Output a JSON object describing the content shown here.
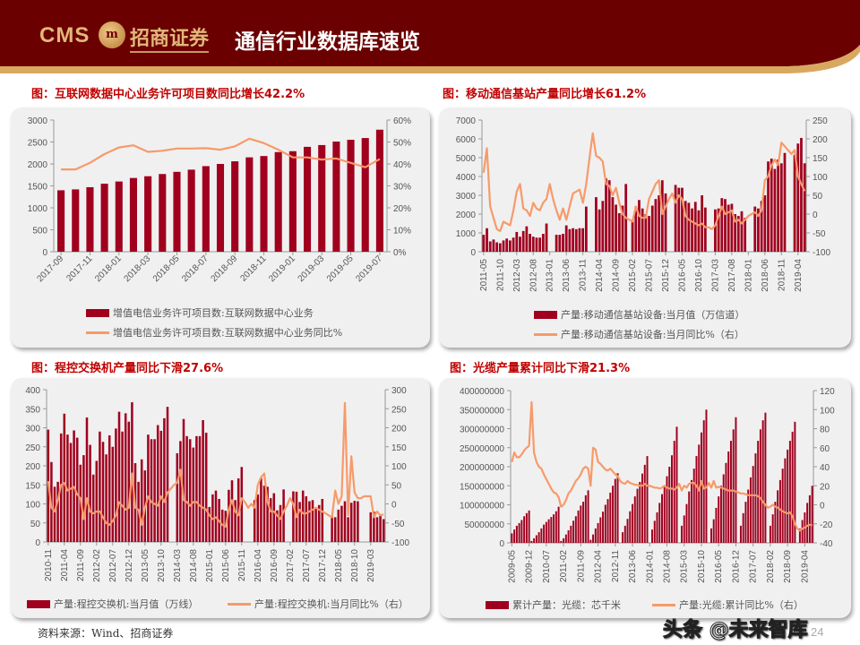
{
  "header": {
    "logo_text": "CMS",
    "logo_emblem": "m",
    "logo_cn": "招商证券",
    "title": "通信行业数据库速览"
  },
  "colors": {
    "header_bg": "#6b0000",
    "header_accent": "#d9a860",
    "bar": "#a0001e",
    "line": "#f79a6a",
    "title_red": "#c00000"
  },
  "figures": [
    {
      "title": "图：互联网数据中心业务许可项目数同比增长42.2%",
      "legend_bar": "增值电信业务许可项目数:互联网数据中心业务",
      "legend_line": "增值电信业务许可项目数:互联网数据中心业务同比%"
    },
    {
      "title": "图：移动通信基站产量同比增长61.2%",
      "legend_bar": "产量:移动通信基站设备:当月值（万信道）",
      "legend_line": "产量:移动通信基站设备:当月同比%（右）"
    },
    {
      "title": "图：程控交换机产量同比下滑27.6%",
      "legend_bar": "产量:程控交换机:当月值（万线）",
      "legend_line": "产量:程控交换机:当月同比%（右）"
    },
    {
      "title": "图：光缆产量累计同比下滑21.3%",
      "legend_bar": "累计产量：光缆：芯千米",
      "legend_line": "产量:光缆:累计同比%（右）"
    }
  ],
  "chart_data": [
    {
      "type": "bar+line",
      "x_range": [
        "2017-09",
        "2019-07"
      ],
      "xticks": [
        "2017-09",
        "2017-11",
        "2018-01",
        "2018-03",
        "2018-05",
        "2018-07",
        "2018-09",
        "2018-11",
        "2019-01",
        "2019-03",
        "2019-05",
        "2019-07"
      ],
      "ylim": [
        0,
        3000
      ],
      "yticks_left": [
        "0",
        "500",
        "1000",
        "1500",
        "2000",
        "2500",
        "3000"
      ],
      "y2lim": [
        0,
        60
      ],
      "yticks_right": [
        "0%",
        "10%",
        "20%",
        "30%",
        "40%",
        "50%",
        "60%"
      ],
      "grid": false,
      "legend": "bottom",
      "series": [
        {
          "name": "增值电信业务许可项目数:互联网数据中心业务",
          "type": "bar",
          "axis": "left",
          "values": [
            1400,
            1420,
            1470,
            1550,
            1600,
            1680,
            1720,
            1770,
            1820,
            1870,
            1950,
            2000,
            2060,
            2150,
            2180,
            2270,
            2290,
            2390,
            2430,
            2510,
            2550,
            2590,
            2780
          ]
        },
        {
          "name": "增值电信业务许可项目数:互联网数据中心业务同比%",
          "type": "line",
          "axis": "right",
          "values": [
            37.5,
            37.5,
            40.5,
            44.5,
            47.5,
            48.5,
            45.5,
            46,
            47,
            47,
            47.2,
            46.5,
            48,
            51.5,
            49.5,
            46.5,
            43,
            43,
            42,
            42.5,
            40.5,
            38.5,
            42.2
          ]
        }
      ]
    },
    {
      "type": "bar+line",
      "x_range": [
        "2011-05",
        "2019-06"
      ],
      "xticks": [
        "2011-05",
        "2011-10",
        "2012-03",
        "2012-08",
        "2013-01",
        "2013-06",
        "2013-11",
        "2014-04",
        "2014-09",
        "2015-02",
        "2015-07",
        "2015-12",
        "2016-05",
        "2016-10",
        "2017-03",
        "2017-08",
        "2018-01",
        "2018-06",
        "2018-11",
        "2019-04"
      ],
      "ylim": [
        0,
        7000
      ],
      "yticks_left": [
        "0",
        "1000",
        "2000",
        "3000",
        "4000",
        "5000",
        "6000",
        "7000"
      ],
      "y2lim": [
        -100,
        250
      ],
      "yticks_right": [
        "-100",
        "-50",
        "0",
        "50",
        "100",
        "150",
        "200",
        "250"
      ],
      "grid": false,
      "legend": "bottom",
      "series": [
        {
          "name": "产量:移动通信基站设备:当月值（万信道）",
          "type": "bar",
          "axis": "left",
          "values": [
            900,
            1250,
            550,
            650,
            500,
            450,
            600,
            700,
            600,
            750,
            1050,
            800,
            1100,
            1350,
            950,
            800,
            750,
            750,
            950,
            1500,
            null,
            null,
            900,
            900,
            950,
            1400,
            1200,
            1250,
            1200,
            1250,
            1250,
            2400,
            null,
            null,
            2900,
            2250,
            2700,
            3900,
            3800,
            2900,
            2500,
            2050,
            2450,
            3600,
            null,
            1700,
            2400,
            2750,
            2300,
            2000,
            1900,
            2450,
            2800,
            3000,
            3800,
            3100,
            null,
            null,
            3550,
            3400,
            3400,
            2700,
            2600,
            2300,
            2650,
            2200,
            3000,
            2350,
            null,
            null,
            2250,
            2300,
            2850,
            2800,
            2500,
            2550,
            2000,
            1900,
            2150,
            1800,
            null,
            null,
            2400,
            2300,
            2700,
            3000,
            4800,
            4950,
            4400,
            4900,
            4700,
            5250,
            null,
            null,
            5150,
            5750,
            6050,
            4700
          ]
        },
        {
          "name": "产量:移动通信基站设备:当月同比%（右）",
          "type": "line",
          "axis": "right",
          "values": [
            110,
            175,
            20,
            -10,
            -40,
            -45,
            -20,
            -25,
            -30,
            10,
            60,
            80,
            15,
            10,
            -5,
            30,
            15,
            10,
            30,
            40,
            80,
            40,
            10,
            -15,
            15,
            -15,
            20,
            55,
            60,
            65,
            30,
            80,
            150,
            215,
            155,
            150,
            140,
            80,
            75,
            50,
            70,
            30,
            0,
            -10,
            -15,
            -20,
            20,
            -5,
            -10,
            -10,
            40,
            60,
            80,
            90,
            0,
            20,
            40,
            55,
            30,
            50,
            40,
            -5,
            -15,
            -20,
            -25,
            -30,
            -25,
            -35,
            -35,
            -40,
            -30,
            -5,
            20,
            0,
            5,
            10,
            -20,
            -15,
            -25,
            -15,
            -5,
            0,
            5,
            -5,
            10,
            90,
            100,
            130,
            145,
            130,
            190,
            180,
            170,
            160,
            170,
            100,
            80,
            61.2
          ]
        }
      ]
    },
    {
      "type": "bar+line",
      "x_range": [
        "2010-11",
        "2019-07"
      ],
      "xticks": [
        "2010-11",
        "2011-04",
        "2011-09",
        "2012-02",
        "2012-07",
        "2012-12",
        "2013-05",
        "2013-10",
        "2014-03",
        "2014-08",
        "2015-01",
        "2015-06",
        "2015-11",
        "2016-04",
        "2016-09",
        "2017-02",
        "2017-07",
        "2017-12",
        "2018-05",
        "2018-10",
        "2019-03"
      ],
      "ylim": [
        0,
        400
      ],
      "yticks_left": [
        "0",
        "50",
        "100",
        "150",
        "200",
        "250",
        "300",
        "350",
        "400"
      ],
      "y2lim": [
        -100,
        300
      ],
      "yticks_right": [
        "-100",
        "-50",
        "0",
        "50",
        "100",
        "150",
        "200",
        "250",
        "300"
      ],
      "grid": false,
      "legend": "bottom",
      "series": [
        {
          "name": "产量:程控交换机:当月值（万线）",
          "type": "bar",
          "axis": "left",
          "values": [
            295,
            210,
            145,
            158,
            285,
            337,
            282,
            260,
            293,
            274,
            203,
            228,
            327,
            255,
            177,
            213,
            290,
            263,
            230,
            280,
            250,
            298,
            342,
            290,
            338,
            316,
            367,
            207,
            158,
            217,
            188,
            282,
            270,
            270,
            307,
            292,
            325,
            355,
            null,
            null,
            233,
            265,
            323,
            278,
            270,
            248,
            278,
            278,
            320,
            287,
            92,
            125,
            135,
            113,
            85,
            82,
            137,
            162,
            110,
            167,
            197,
            null,
            null,
            null,
            110,
            125,
            168,
            148,
            145,
            115,
            128,
            83,
            97,
            138,
            null,
            null,
            133,
            132,
            105,
            135,
            120,
            107,
            110,
            88,
            97,
            113,
            null,
            null,
            68,
            65,
            85,
            95,
            107,
            65,
            103,
            108,
            107,
            null,
            null,
            null,
            78,
            80,
            65,
            70,
            60
          ]
        },
        {
          "name": "产量:程控交换机:当月同比%（右）",
          "type": "line",
          "axis": "right",
          "values": [
            60,
            -10,
            -20,
            10,
            50,
            55,
            35,
            40,
            45,
            25,
            15,
            -40,
            15,
            -20,
            -25,
            -20,
            -20,
            -35,
            -50,
            -55,
            -45,
            -30,
            5,
            -5,
            -15,
            -10,
            80,
            -10,
            -15,
            -55,
            -10,
            20,
            5,
            0,
            -5,
            20,
            5,
            30,
            40,
            50,
            55,
            90,
            10,
            5,
            -5,
            5,
            5,
            -5,
            -10,
            -15,
            -30,
            -40,
            -35,
            -45,
            -55,
            -60,
            -15,
            10,
            -20,
            -30,
            15,
            5,
            -10,
            0,
            -10,
            50,
            70,
            80,
            5,
            -20,
            -20,
            -30,
            -40,
            -20,
            -5,
            15,
            0,
            -35,
            -15,
            -25,
            -25,
            -20,
            -15,
            -10,
            -15,
            -20,
            -25,
            -30,
            -35,
            35,
            0,
            20,
            265,
            -30,
            125,
            30,
            15,
            15,
            20,
            20,
            20,
            -35,
            -20,
            -30,
            -27.6
          ]
        }
      ]
    },
    {
      "type": "bar+line",
      "x_range": [
        "2009-05",
        "2019-07"
      ],
      "xticks": [
        "2009-05",
        "2009-12",
        "2010-07",
        "2011-02",
        "2011-09",
        "2012-04",
        "2012-11",
        "2013-06",
        "2014-01",
        "2014-08",
        "2015-03",
        "2015-10",
        "2016-05",
        "2016-12",
        "2017-07",
        "2018-02",
        "2018-09",
        "2019-04"
      ],
      "ylim": [
        0,
        400000000
      ],
      "yticks_left": [
        "0",
        "50000000",
        "100000000",
        "150000000",
        "200000000",
        "250000000",
        "300000000",
        "350000000",
        "400000000"
      ],
      "y2lim": [
        -40,
        120
      ],
      "yticks_right": [
        "-40",
        "-20",
        "0",
        "20",
        "40",
        "60",
        "80",
        "100",
        "120"
      ],
      "grid": false,
      "legend": "bottom",
      "series": [
        {
          "name": "累计产量：光缆：芯千米",
          "type": "bar",
          "axis": "left",
          "values": [
            25000000.0,
            35000000.0,
            45000000.0,
            52000000.0,
            60000000.0,
            70000000.0,
            78000000.0,
            85000000.0,
            5000000.0,
            12000000.0,
            20000000.0,
            28000000.0,
            38000000.0,
            48000000.0,
            55000000.0,
            62000000.0,
            68000000.0,
            75000000.0,
            83000000.0,
            95000000.0,
            5000000.0,
            12000000.0,
            22000000.0,
            33000000.0,
            45000000.0,
            58000000.0,
            70000000.0,
            85000000.0,
            98000000.0,
            108000000.0,
            125000000.0,
            138000000.0,
            8000000.0,
            22000000.0,
            38000000.0,
            52000000.0,
            67000000.0,
            82000000.0,
            100000000.0,
            115000000.0,
            132000000.0,
            150000000.0,
            168000000.0,
            183000000.0,
            null,
            28000000.0,
            45000000.0,
            63000000.0,
            83000000.0,
            102000000.0,
            122000000.0,
            142000000.0,
            160000000.0,
            182000000.0,
            205000000.0,
            228000000.0,
            null,
            35000000.0,
            58000000.0,
            80000000.0,
            105000000.0,
            128000000.0,
            150000000.0,
            175000000.0,
            200000000.0,
            230000000.0,
            268000000.0,
            305000000.0,
            null,
            45000000.0,
            72000000.0,
            102000000.0,
            135000000.0,
            165000000.0,
            195000000.0,
            228000000.0,
            258000000.0,
            290000000.0,
            322000000.0,
            350000000.0,
            null,
            38000000.0,
            62000000.0,
            92000000.0,
            122000000.0,
            150000000.0,
            180000000.0,
            210000000.0,
            240000000.0,
            268000000.0,
            298000000.0,
            330000000.0,
            null,
            45000000.0,
            78000000.0,
            108000000.0,
            140000000.0,
            172000000.0,
            202000000.0,
            235000000.0,
            268000000.0,
            298000000.0,
            322000000.0,
            342000000.0,
            null,
            45000000.0,
            75000000.0,
            108000000.0,
            138000000.0,
            165000000.0,
            195000000.0,
            222000000.0,
            245000000.0,
            268000000.0,
            292000000.0,
            318000000.0,
            null,
            38000000.0,
            60000000.0,
            80000000.0,
            105000000.0,
            125000000.0,
            150000000.0
          ]
        },
        {
          "name": "产量:光缆:累计同比%（右）",
          "type": "line",
          "axis": "right",
          "values": [
            45,
            55,
            50,
            50,
            53,
            57,
            60,
            62,
            108,
            55,
            45,
            40,
            38,
            32,
            27,
            22,
            17,
            13,
            12,
            8,
            -2,
            0,
            5,
            12,
            15,
            20,
            25,
            28,
            32,
            38,
            40,
            38,
            20,
            60,
            58,
            45,
            43,
            40,
            37,
            36,
            38,
            35,
            32,
            30,
            25,
            23,
            22,
            25,
            23,
            22,
            21,
            21,
            20,
            20,
            22,
            20,
            20,
            19,
            18,
            18,
            17,
            18,
            20,
            18,
            17,
            17,
            16,
            18,
            22,
            15,
            20,
            18,
            22,
            23,
            23,
            20,
            15,
            25,
            17,
            18,
            23,
            18,
            25,
            18,
            19,
            18,
            17,
            16,
            15,
            15,
            15,
            14,
            13,
            12,
            12,
            11,
            10,
            10,
            10,
            10,
            9,
            7,
            3,
            0,
            -3,
            -2,
            0,
            -2,
            -3,
            -5,
            -7,
            -8,
            -9,
            -8,
            -12,
            -20,
            -25,
            -27,
            -25,
            -24,
            -22,
            -21,
            -21.3
          ]
        }
      ]
    }
  ],
  "footer": {
    "source": "资料来源：Wind、招商证券",
    "page_number": "24",
    "watermark": "头条 @未来智库"
  }
}
